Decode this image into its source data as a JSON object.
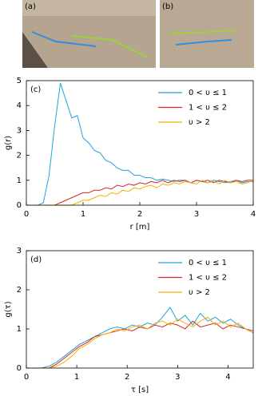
{
  "photos": [
    "(a)",
    "(b)"
  ],
  "chart_data": [
    {
      "type": "line",
      "panel": "(c)",
      "xlabel": "r [m]",
      "ylabel": "g(r)",
      "xlim": [
        0,
        4
      ],
      "ylim": [
        0,
        5
      ],
      "xticks": [
        0,
        1,
        2,
        3,
        4
      ],
      "yticks": [
        0,
        1,
        2,
        3,
        4,
        5
      ],
      "x": [
        0,
        0.1,
        0.2,
        0.3,
        0.4,
        0.5,
        0.6,
        0.7,
        0.8,
        0.9,
        1.0,
        1.1,
        1.2,
        1.3,
        1.4,
        1.5,
        1.6,
        1.7,
        1.8,
        1.9,
        2.0,
        2.1,
        2.2,
        2.3,
        2.4,
        2.5,
        2.6,
        2.7,
        2.8,
        2.9,
        3.0,
        3.1,
        3.2,
        3.3,
        3.4,
        3.5,
        3.6,
        3.7,
        3.8,
        3.9,
        4.0
      ],
      "series": [
        {
          "name": "0 < υ ≤ 1",
          "color": "#1fa3d9",
          "values": [
            0,
            0,
            0,
            0.1,
            1.2,
            3.2,
            4.9,
            4.2,
            3.5,
            3.6,
            2.7,
            2.5,
            2.2,
            2.1,
            1.8,
            1.7,
            1.5,
            1.4,
            1.4,
            1.2,
            1.2,
            1.1,
            1.1,
            1.0,
            1.05,
            1.0,
            0.95,
            1.0,
            1.0,
            0.9,
            1.0,
            0.95,
            0.9,
            1.0,
            0.95,
            0.9,
            0.95,
            1.0,
            0.9,
            0.95,
            0.95
          ]
        },
        {
          "name": "1 < υ ≤ 2",
          "color": "#d62728",
          "values": [
            0,
            0,
            0,
            0,
            0,
            0,
            0.1,
            0.2,
            0.3,
            0.4,
            0.5,
            0.5,
            0.6,
            0.6,
            0.7,
            0.65,
            0.8,
            0.75,
            0.85,
            0.8,
            0.9,
            0.85,
            0.95,
            0.9,
            1.0,
            0.9,
            1.0,
            0.95,
            1.0,
            0.9,
            1.0,
            0.95,
            1.0,
            0.9,
            1.0,
            0.95,
            0.9,
            1.0,
            0.95,
            1.0,
            1.0
          ]
        },
        {
          "name": "υ > 2",
          "color": "#f5b000",
          "values": [
            0,
            0,
            0,
            0,
            0,
            0,
            0,
            0,
            0,
            0.1,
            0.2,
            0.2,
            0.3,
            0.4,
            0.35,
            0.5,
            0.45,
            0.6,
            0.55,
            0.7,
            0.65,
            0.75,
            0.8,
            0.7,
            0.85,
            0.8,
            0.9,
            0.85,
            0.95,
            0.9,
            0.85,
            1.0,
            0.9,
            0.95,
            0.85,
            1.0,
            0.9,
            0.95,
            0.85,
            0.9,
            1.0
          ]
        }
      ]
    },
    {
      "type": "line",
      "panel": "(d)",
      "xlabel": "τ [s]",
      "ylabel": "g(τ)",
      "xlim": [
        0,
        4.5
      ],
      "ylim": [
        0,
        3
      ],
      "xticks": [
        0,
        1,
        2,
        3,
        4
      ],
      "yticks": [
        0,
        1,
        2,
        3
      ],
      "x": [
        0,
        0.15,
        0.3,
        0.45,
        0.6,
        0.75,
        0.9,
        1.05,
        1.2,
        1.35,
        1.5,
        1.65,
        1.8,
        1.95,
        2.1,
        2.25,
        2.4,
        2.55,
        2.7,
        2.85,
        3.0,
        3.15,
        3.3,
        3.45,
        3.6,
        3.75,
        3.9,
        4.05,
        4.2,
        4.35,
        4.5
      ],
      "series": [
        {
          "name": "0 < υ ≤ 1",
          "color": "#1fa3d9",
          "values": [
            0,
            0,
            0,
            0.05,
            0.15,
            0.3,
            0.45,
            0.6,
            0.7,
            0.8,
            0.9,
            1.0,
            1.05,
            1.0,
            1.1,
            1.05,
            1.15,
            1.1,
            1.3,
            1.55,
            1.2,
            1.35,
            1.1,
            1.4,
            1.2,
            1.3,
            1.15,
            1.25,
            1.1,
            1.0,
            0.9
          ]
        },
        {
          "name": "1 < υ ≤ 2",
          "color": "#d62728",
          "values": [
            0,
            0,
            0,
            0,
            0.1,
            0.25,
            0.4,
            0.55,
            0.65,
            0.8,
            0.85,
            0.9,
            0.95,
            1.0,
            0.95,
            1.05,
            1.0,
            1.1,
            1.05,
            1.15,
            1.1,
            1.0,
            1.2,
            1.05,
            1.1,
            1.15,
            1.0,
            1.1,
            1.05,
            1.0,
            0.95
          ]
        },
        {
          "name": "υ > 2",
          "color": "#f5b000",
          "values": [
            0,
            0,
            0,
            0,
            0.05,
            0.15,
            0.3,
            0.5,
            0.6,
            0.75,
            0.85,
            0.9,
            1.0,
            0.95,
            1.05,
            1.1,
            1.0,
            1.15,
            1.2,
            1.1,
            1.25,
            1.15,
            1.05,
            1.2,
            1.3,
            1.1,
            1.2,
            1.05,
            1.15,
            1.0,
            0.9
          ]
        }
      ]
    }
  ]
}
